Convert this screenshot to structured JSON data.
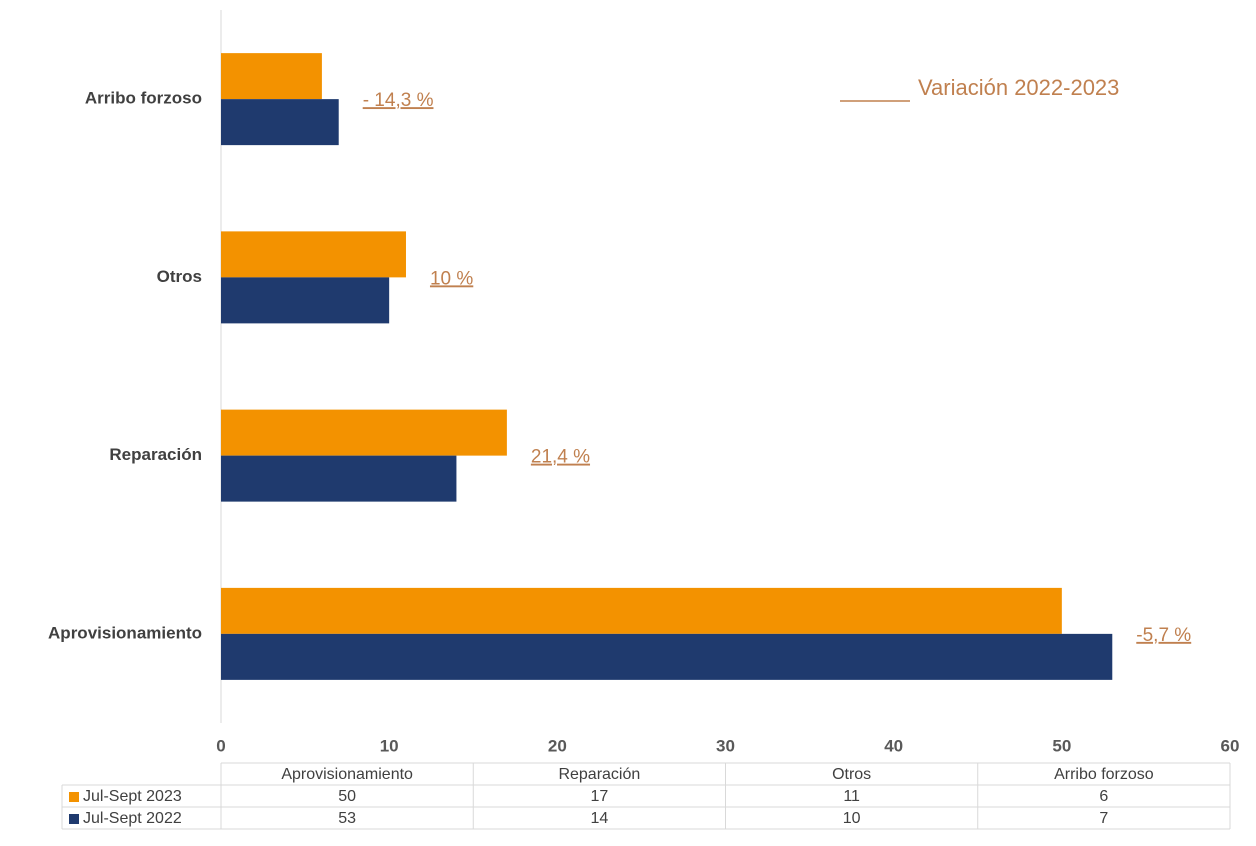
{
  "chart_data": {
    "type": "hbar",
    "categories": [
      "Aprovisionamiento",
      "Reparación",
      "Otros",
      "Arribo forzoso"
    ],
    "series": [
      {
        "name": "Jul-Sept 2023",
        "color": "#f39200",
        "values": [
          50,
          17,
          11,
          6
        ]
      },
      {
        "name": "Jul-Sept 2022",
        "color": "#1f3a6e",
        "values": [
          53,
          14,
          10,
          7
        ]
      }
    ],
    "annotations": [
      "-5,7 %",
      "21,4 %",
      "10 %",
      "- 14,3 %"
    ],
    "annotation_title": "Variación 2022-2023",
    "annotation_color": "#c0804f",
    "xlim": [
      0,
      60
    ],
    "xticks": [
      0,
      10,
      20,
      30,
      40,
      50,
      60
    ],
    "grid": false,
    "data_table": true
  }
}
